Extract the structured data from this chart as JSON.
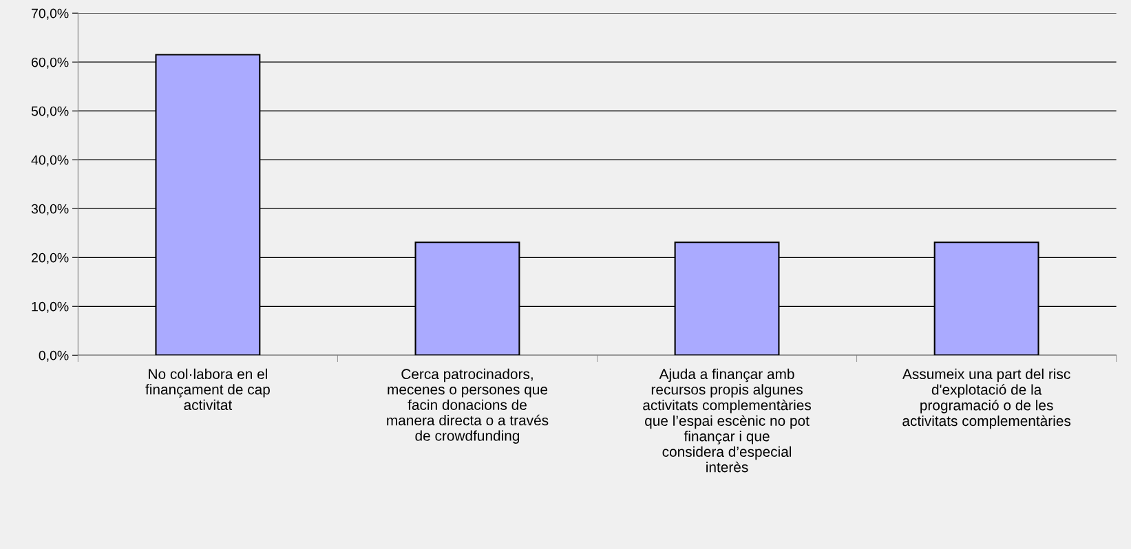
{
  "chart_data": {
    "type": "bar",
    "categories": [
      "No col·labora en el\nfinançament de cap\nactivitat",
      "Cerca patrocinadors,\nmecenes o persones que\nfacin donacions de\nmanera directa o a través\nde crowdfunding",
      "Ajuda a finançar amb\nrecursos propis algunes\nactivitats complementàries\nque l’espai escènic no pot\nfinançar i que\nconsidera d’especial\ninterès",
      "Assumeix una part del risc\nd'explotació de la\nprogramació o de les\nactivitats complementàries"
    ],
    "values": [
      61.5,
      23.1,
      23.1,
      23.1
    ],
    "color": "#aaaaff",
    "ylim": [
      0,
      70
    ],
    "yticks": [
      {
        "value": 0,
        "label": "0,0%"
      },
      {
        "value": 10,
        "label": "10,0%"
      },
      {
        "value": 20,
        "label": "20,0%"
      },
      {
        "value": 30,
        "label": "30,0%"
      },
      {
        "value": 40,
        "label": "40,0%"
      },
      {
        "value": 50,
        "label": "50,0%"
      },
      {
        "value": 60,
        "label": "60,0%"
      },
      {
        "value": 70,
        "label": "70,0%"
      }
    ],
    "grid": "y"
  }
}
